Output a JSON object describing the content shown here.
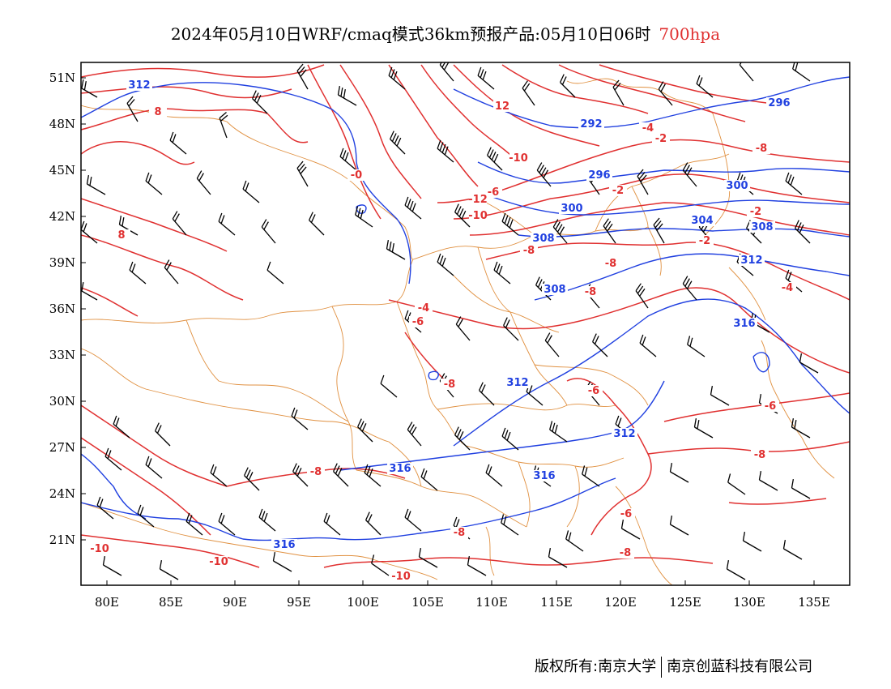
{
  "title": {
    "main": "2024年05月10日WRF/cmaq模式36km预报产品:05月10日06时",
    "level": "700hpa"
  },
  "axes": {
    "lat_labels": [
      "51N",
      "48N",
      "45N",
      "42N",
      "39N",
      "36N",
      "33N",
      "30N",
      "27N",
      "24N",
      "21N"
    ],
    "lon_labels": [
      "80E",
      "85E",
      "90E",
      "95E",
      "100E",
      "105E",
      "110E",
      "115E",
      "120E",
      "125E",
      "130E",
      "135E"
    ]
  },
  "temperature_labels": [
    "8",
    "8",
    "12",
    "-4",
    "-2",
    "-6",
    "-10",
    "-8",
    "-2",
    "-2",
    "-2",
    "-4",
    "-4",
    "-6",
    "-8",
    "-8",
    "-8",
    "-8",
    "-6",
    "-6",
    "-8",
    "-6",
    "-8",
    "-8",
    "-8",
    "-10",
    "-10",
    "-10",
    "-12",
    "-10",
    "-0"
  ],
  "height_labels": [
    "312",
    "292",
    "296",
    "296",
    "300",
    "300",
    "304",
    "308",
    "308",
    "312",
    "308",
    "316",
    "312",
    "312",
    "316",
    "316",
    "316"
  ],
  "colors": {
    "temperature": "#e03030",
    "height": "#2040e0",
    "border": "#e09040",
    "wind": "#000000"
  },
  "footer": {
    "copyright": "版权所有:南京大学",
    "company": "南京创蓝科技有限公司"
  }
}
